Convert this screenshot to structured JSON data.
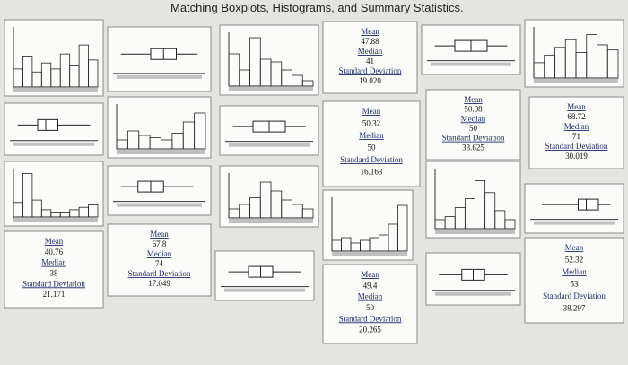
{
  "title": "Matching Boxplots, Histograms, and Summary Statistics.",
  "stat_cards": [
    {
      "mean_label": "Mean",
      "mean": "47.88",
      "median_label": "Median",
      "median": "41",
      "sd_label": "Standard Deviation",
      "sd": "19.020"
    },
    {
      "mean_label": "Mean",
      "mean": "50.32",
      "median_label": "Median",
      "median": "50",
      "sd_label": "Standard Deviation",
      "sd": "16.163"
    },
    {
      "mean_label": "Mean",
      "mean": "50.08",
      "median_label": "Median",
      "median": "50",
      "sd_label": "Standard Deviation",
      "sd": "33.625"
    },
    {
      "mean_label": "Mean",
      "mean": "68.72",
      "median_label": "Median",
      "median": "71",
      "sd_label": "Standard Deviation",
      "sd": "30.019"
    },
    {
      "mean_label": "Mean",
      "mean": "40.76",
      "median_label": "Median",
      "median": "38",
      "sd_label": "Standard Deviation",
      "sd": "21.171"
    },
    {
      "mean_label": "Mean",
      "mean": "67.8",
      "median_label": "Median",
      "median": "74",
      "sd_label": "Standard Deviation",
      "sd": "17.049"
    },
    {
      "mean_label": "Mean",
      "mean": "49.4",
      "median_label": "Median",
      "median": "50",
      "sd_label": "Standard Deviation",
      "sd": "20.265"
    },
    {
      "mean_label": "Mean",
      "mean": "52.32",
      "median_label": "Median",
      "median": "53",
      "sd_label": "Standard Deviation",
      "sd": "38.297"
    }
  ]
}
